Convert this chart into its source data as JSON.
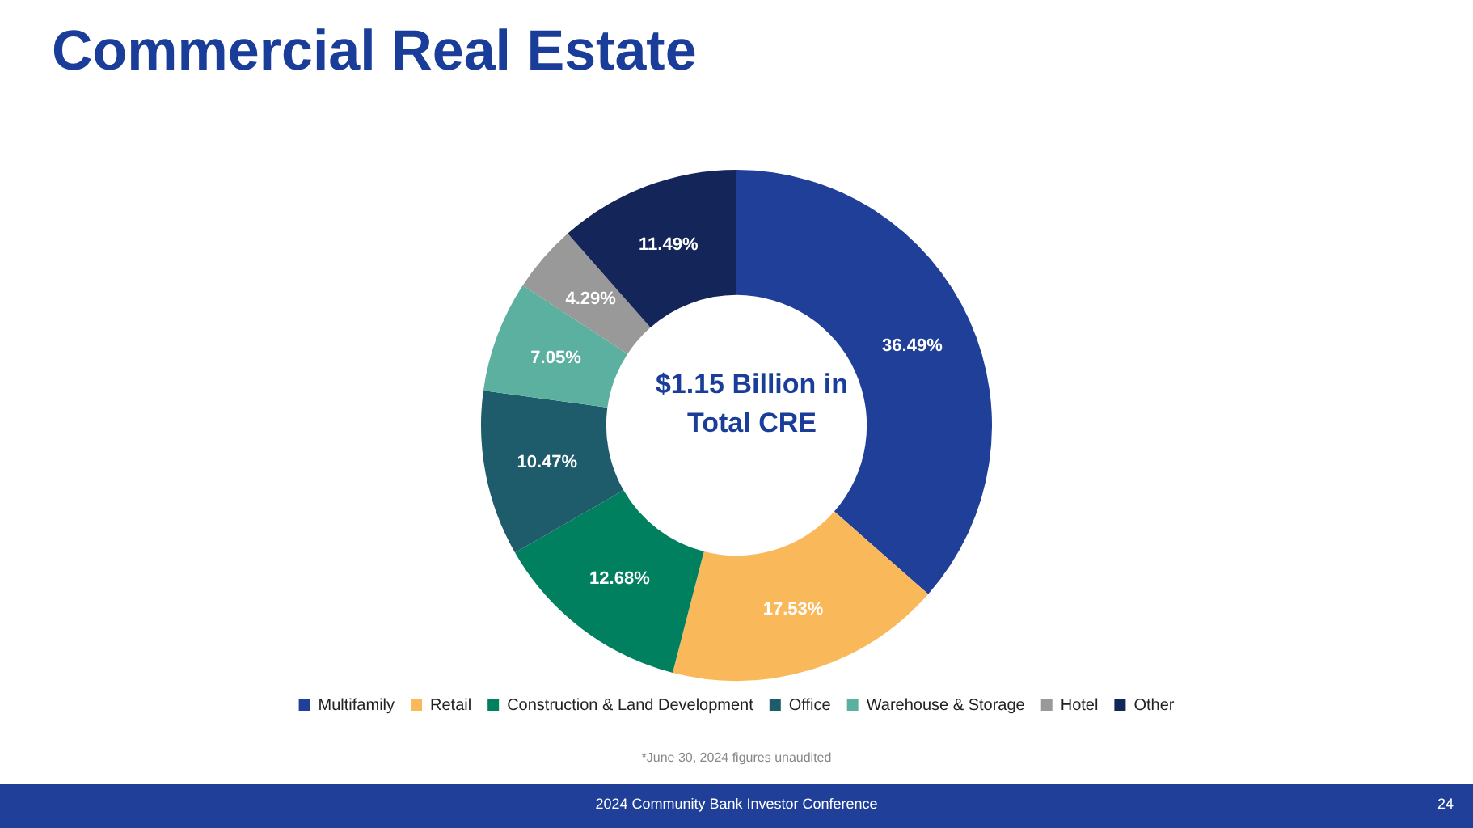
{
  "chart_data": {
    "type": "donut",
    "title": "Commercial Real Estate",
    "categories": [
      "Multifamily",
      "Retail",
      "Construction & Land Development",
      "Office",
      "Warehouse & Storage",
      "Hotel",
      "Other"
    ],
    "values": [
      36.49,
      17.53,
      12.68,
      10.47,
      7.05,
      4.29,
      11.49
    ],
    "value_labels": [
      "36.49%",
      "17.53%",
      "12.68%",
      "10.47%",
      "7.05%",
      "4.29%",
      "11.49%"
    ],
    "colors": [
      "#1f3f99",
      "#f9b95a",
      "#00805f",
      "#1e5b6b",
      "#5bb0a0",
      "#999999",
      "#14255a"
    ],
    "legend": "bottom",
    "annotations": [
      "$1.15 Billion in Total CRE",
      "*June 30, 2024 figures unaudited",
      "2024 Community Bank Investor Conference",
      "24"
    ]
  }
}
